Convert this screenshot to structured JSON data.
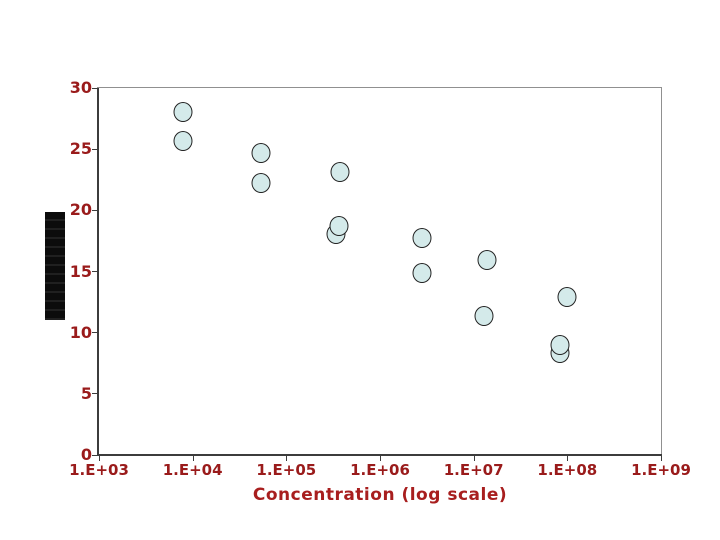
{
  "slide": {
    "background": "#ffffff"
  },
  "chart_data": {
    "type": "scatter",
    "title": "",
    "xlabel": "Concentration (log scale)",
    "ylabel": "",
    "x_scale": "log10",
    "xlim": [
      1000,
      1000000000
    ],
    "ylim": [
      0,
      30
    ],
    "x_tick_labels": [
      "1.E+03",
      "1.E+04",
      "1.E+05",
      "1.E+06",
      "1.E+07",
      "1.E+08",
      "1.E+09"
    ],
    "y_tick_labels": [
      30,
      25,
      20,
      15,
      10,
      5,
      0
    ],
    "grid": false,
    "legend": false,
    "points": [
      {
        "x": 7900,
        "y": 28.0
      },
      {
        "x": 7900,
        "y": 25.7
      },
      {
        "x": 54000,
        "y": 24.7
      },
      {
        "x": 54000,
        "y": 22.2
      },
      {
        "x": 370000,
        "y": 23.1
      },
      {
        "x": 340000,
        "y": 18.1
      },
      {
        "x": 365000,
        "y": 18.7
      },
      {
        "x": 2800000,
        "y": 17.7
      },
      {
        "x": 2800000,
        "y": 14.9
      },
      {
        "x": 14000000,
        "y": 15.9
      },
      {
        "x": 13000000,
        "y": 11.4
      },
      {
        "x": 98000000,
        "y": 12.9
      },
      {
        "x": 83000000,
        "y": 8.3
      },
      {
        "x": 83000000,
        "y": 9.0
      }
    ]
  },
  "colors": {
    "background": "#ffffff",
    "tick_label": "#9a1b1b",
    "axis_title": "#a81e1e",
    "axis_line": "#3c3c3c",
    "plot_border": "#909090",
    "marker_fill": "#d4eaea",
    "marker_stroke": "#222222",
    "redaction_bar": "#0c0c0c"
  }
}
